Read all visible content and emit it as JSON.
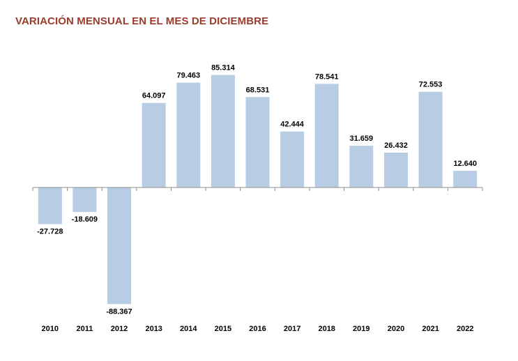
{
  "chart_data": {
    "type": "bar",
    "title": "VARIACIÓN MENSUAL EN EL MES DE DICIEMBRE",
    "xlabel": "",
    "ylabel": "",
    "categories": [
      "2010",
      "2011",
      "2012",
      "2013",
      "2014",
      "2015",
      "2016",
      "2017",
      "2018",
      "2019",
      "2020",
      "2021",
      "2022"
    ],
    "values": [
      -27728,
      -18609,
      -88367,
      64097,
      79463,
      85314,
      68531,
      42444,
      78541,
      31659,
      26432,
      72553,
      12640
    ],
    "data_labels": [
      "-27.728",
      "-18.609",
      "-88.367",
      "64.097",
      "79.463",
      "85.314",
      "68.531",
      "42.444",
      "78.541",
      "31.659",
      "26.432",
      "72.553",
      "12.640"
    ],
    "bar_color": "#b8cce4",
    "title_color": "#9b3b2b",
    "grid": false,
    "legend": "none"
  }
}
